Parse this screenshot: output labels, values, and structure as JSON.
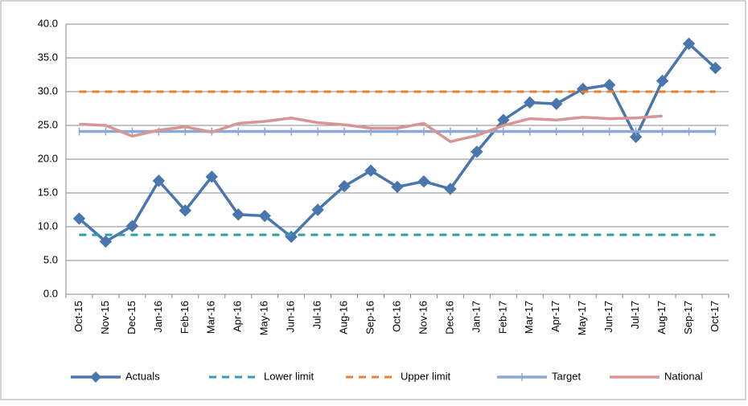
{
  "chart_data": {
    "type": "line",
    "categories": [
      "Oct-15",
      "Nov-15",
      "Dec-15",
      "Jan-16",
      "Feb-16",
      "Mar-16",
      "Apr-16",
      "May-16",
      "Jun-16",
      "Jul-16",
      "Aug-16",
      "Sep-16",
      "Oct-16",
      "Nov-16",
      "Dec-16",
      "Jan-17",
      "Feb-17",
      "Mar-17",
      "Apr-17",
      "May-17",
      "Jun-17",
      "Jul-17",
      "Aug-17",
      "Sep-17",
      "Oct-17"
    ],
    "series": [
      {
        "name": "Actuals",
        "color": "#4a76ae",
        "style": "solid-diamond",
        "values": [
          11.2,
          7.8,
          10.1,
          16.8,
          12.4,
          17.4,
          11.8,
          11.6,
          8.5,
          12.5,
          16.0,
          18.3,
          15.9,
          16.7,
          15.6,
          21.1,
          25.8,
          28.4,
          28.2,
          30.4,
          31.0,
          23.3,
          31.6,
          37.1,
          33.5
        ]
      },
      {
        "name": "Lower limit",
        "color": "#2f9fa8",
        "style": "dashed",
        "values": [
          8.8,
          8.8,
          8.8,
          8.8,
          8.8,
          8.8,
          8.8,
          8.8,
          8.8,
          8.8,
          8.8,
          8.8,
          8.8,
          8.8,
          8.8,
          8.8,
          8.8,
          8.8,
          8.8,
          8.8,
          8.8,
          8.8,
          8.8,
          8.8,
          8.8
        ]
      },
      {
        "name": "Upper limit",
        "color": "#e8822c",
        "style": "dashed",
        "values": [
          30,
          30,
          30,
          30,
          30,
          30,
          30,
          30,
          30,
          30,
          30,
          30,
          30,
          30,
          30,
          30,
          30,
          30,
          30,
          30,
          30,
          30,
          30,
          30,
          30
        ]
      },
      {
        "name": "Target",
        "color": "#8aa8d8",
        "style": "solid-plus",
        "values": [
          24.1,
          24.1,
          24.1,
          24.1,
          24.1,
          24.1,
          24.1,
          24.1,
          24.1,
          24.1,
          24.1,
          24.1,
          24.1,
          24.1,
          24.1,
          24.1,
          24.1,
          24.1,
          24.1,
          24.1,
          24.1,
          24.1,
          24.1,
          24.1,
          24.1
        ]
      },
      {
        "name": "National",
        "color": "#d99593",
        "style": "solid",
        "values": [
          25.2,
          25.0,
          23.4,
          24.3,
          24.8,
          24.0,
          25.3,
          25.6,
          26.1,
          25.4,
          25.1,
          24.6,
          24.6,
          25.3,
          22.6,
          23.5,
          25.0,
          26.0,
          25.8,
          26.2,
          26.0,
          26.1,
          26.4,
          null,
          null
        ]
      }
    ],
    "ylim": [
      0,
      40
    ],
    "yticks": [
      {
        "value": 0,
        "label": "0.0"
      },
      {
        "value": 5,
        "label": "5.0"
      },
      {
        "value": 10,
        "label": "10.0"
      },
      {
        "value": 15,
        "label": "15.0"
      },
      {
        "value": 20,
        "label": "20.0"
      },
      {
        "value": 25,
        "label": "25.0"
      },
      {
        "value": 30,
        "label": "30.0"
      },
      {
        "value": 35,
        "label": "35.0"
      },
      {
        "value": 40,
        "label": "40.0"
      }
    ],
    "grid": true,
    "legend": "bottom"
  }
}
